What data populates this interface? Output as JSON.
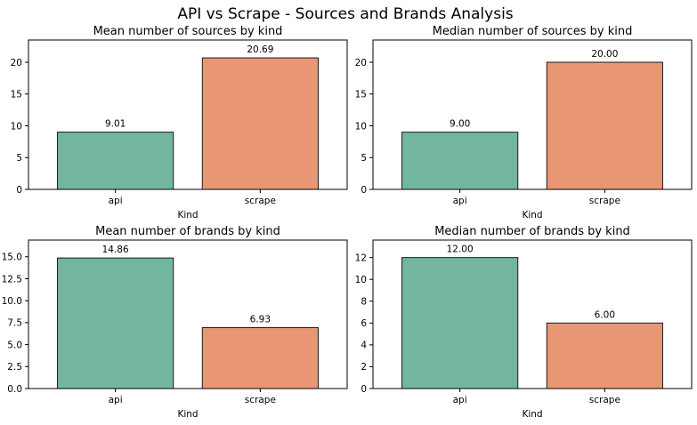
{
  "figure": {
    "suptitle": "API vs Scrape - Sources and Brands Analysis"
  },
  "chart_data": [
    {
      "type": "bar",
      "title": "Mean number of sources by kind",
      "xlabel": "Kind",
      "ylabel": "",
      "categories": [
        "api",
        "scrape"
      ],
      "values": [
        9.01,
        20.69
      ],
      "value_labels": [
        "9.01",
        "20.69"
      ],
      "colors": [
        "#72b6a1",
        "#e99675"
      ],
      "ylim": [
        0,
        23.5
      ],
      "yticks": [
        0,
        5,
        10,
        15,
        20
      ],
      "ytick_labels": [
        "0",
        "5",
        "10",
        "15",
        "20"
      ],
      "grid": false,
      "legend": "none"
    },
    {
      "type": "bar",
      "title": "Median number of sources by kind",
      "xlabel": "Kind",
      "ylabel": "",
      "categories": [
        "api",
        "scrape"
      ],
      "values": [
        9.0,
        20.0
      ],
      "value_labels": [
        "9.00",
        "20.00"
      ],
      "colors": [
        "#72b6a1",
        "#e99675"
      ],
      "ylim": [
        0,
        23.5
      ],
      "yticks": [
        0,
        5,
        10,
        15,
        20
      ],
      "ytick_labels": [
        "0",
        "5",
        "10",
        "15",
        "20"
      ],
      "grid": false,
      "legend": "none"
    },
    {
      "type": "bar",
      "title": "Mean number of brands by kind",
      "xlabel": "Kind",
      "ylabel": "",
      "categories": [
        "api",
        "scrape"
      ],
      "values": [
        14.86,
        6.93
      ],
      "value_labels": [
        "14.86",
        "6.93"
      ],
      "colors": [
        "#72b6a1",
        "#e99675"
      ],
      "ylim": [
        0,
        16.9
      ],
      "yticks": [
        0,
        2.5,
        5,
        7.5,
        10,
        12.5,
        15
      ],
      "ytick_labels": [
        "0.0",
        "2.5",
        "5.0",
        "7.5",
        "10.0",
        "12.5",
        "15.0"
      ],
      "grid": false,
      "legend": "none"
    },
    {
      "type": "bar",
      "title": "Median number of brands by kind",
      "xlabel": "Kind",
      "ylabel": "",
      "categories": [
        "api",
        "scrape"
      ],
      "values": [
        12.0,
        6.0
      ],
      "value_labels": [
        "12.00",
        "6.00"
      ],
      "colors": [
        "#72b6a1",
        "#e99675"
      ],
      "ylim": [
        0,
        13.6
      ],
      "yticks": [
        0,
        2,
        4,
        6,
        8,
        10,
        12
      ],
      "ytick_labels": [
        "0",
        "2",
        "4",
        "6",
        "8",
        "10",
        "12"
      ],
      "grid": false,
      "legend": "none"
    }
  ]
}
